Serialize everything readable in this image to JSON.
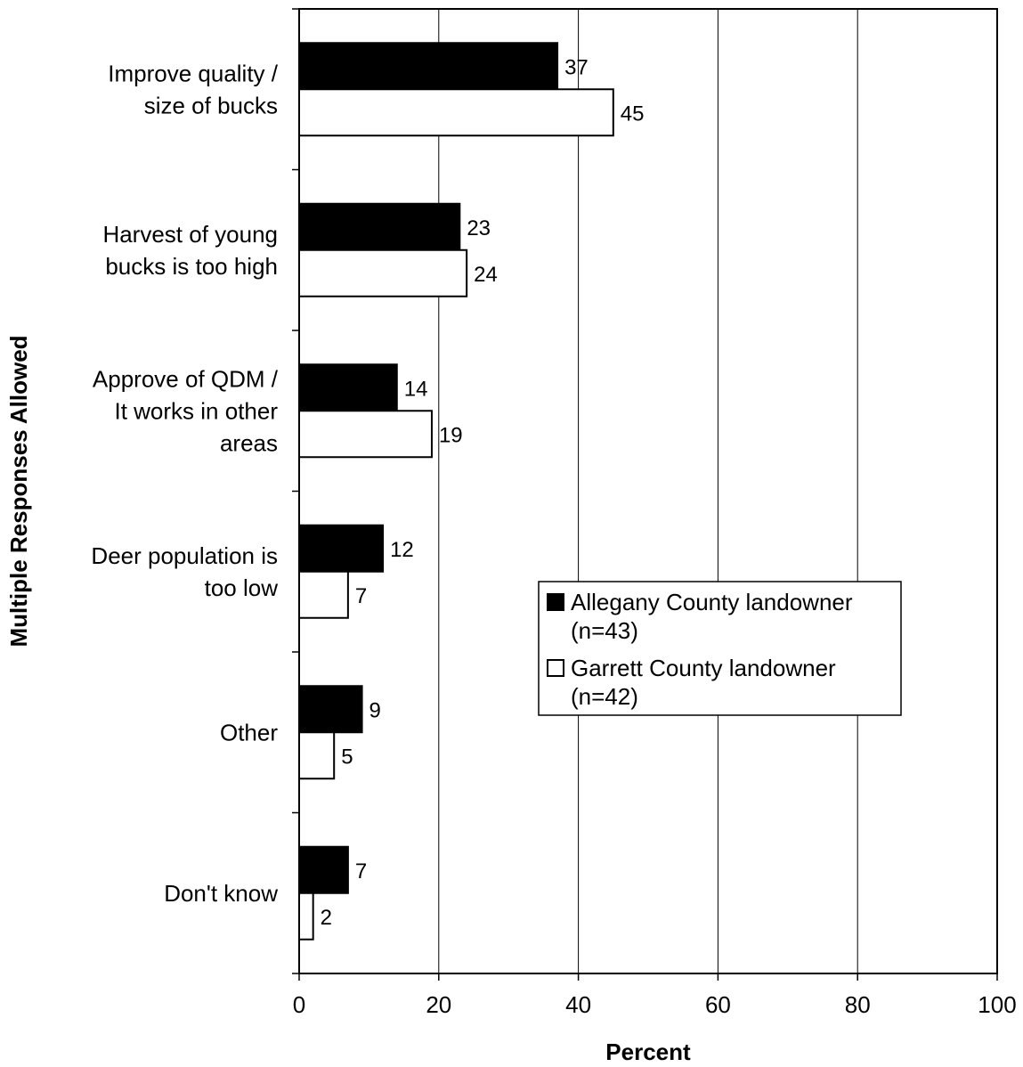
{
  "chart_data": {
    "type": "bar",
    "orientation": "horizontal",
    "categories": [
      [
        "Improve quality /",
        "size of bucks"
      ],
      [
        "Harvest of young",
        "bucks is too high"
      ],
      [
        "Approve of QDM /",
        "It works in other",
        "areas"
      ],
      [
        "Deer population is",
        "too low"
      ],
      [
        "Other"
      ],
      [
        "Don't know"
      ]
    ],
    "series": [
      {
        "name_lines": [
          "Allegany County landowner",
          "(n=43)"
        ],
        "color": "#000000",
        "values": [
          37,
          23,
          14,
          12,
          9,
          7
        ]
      },
      {
        "name_lines": [
          "Garrett County landowner",
          "(n=42)"
        ],
        "color": "#ffffff",
        "values": [
          45,
          24,
          19,
          7,
          5,
          2
        ]
      }
    ],
    "xlabel": "Percent",
    "ylabel": "Multiple Responses Allowed",
    "xlim": [
      0,
      100
    ],
    "xticks": [
      0,
      20,
      40,
      60,
      80,
      100
    ],
    "grid": "vertical",
    "legend_position": "center-right"
  }
}
